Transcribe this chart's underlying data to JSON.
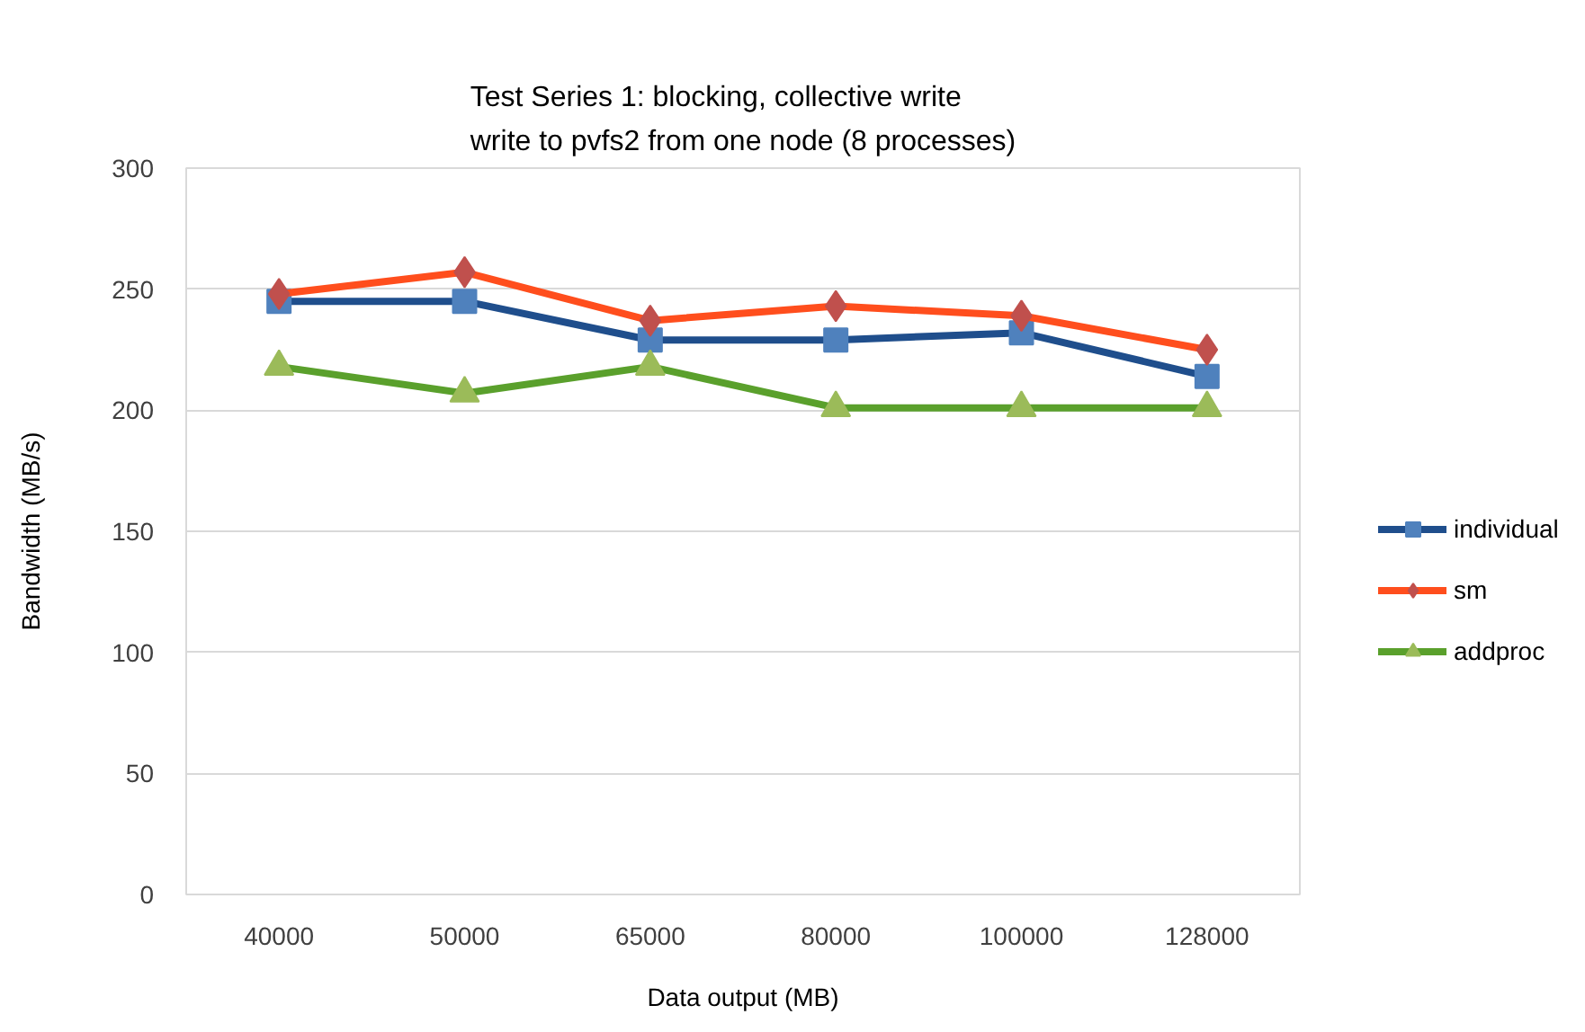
{
  "chart_data": {
    "type": "line",
    "title": "Test Series 1: blocking, collective write\nwrite to pvfs2 from one node (8 processes)",
    "xlabel": "Data output (MB)",
    "ylabel": "Bandwidth (MB/s)",
    "categories": [
      "40000",
      "50000",
      "65000",
      "80000",
      "100000",
      "128000"
    ],
    "series": [
      {
        "name": "individual",
        "color": "#1f4e8c",
        "colors": [
          "#4f81bd",
          "#4f81bd",
          "#4f81bd",
          "#4f81bd",
          "#4f81bd",
          "#4f81bd"
        ],
        "marker": "square",
        "values": [
          245,
          245,
          229,
          229,
          232,
          214
        ]
      },
      {
        "name": "sm",
        "color": "#ff4e1d",
        "colors": [
          "#c0504d",
          "#c0504d",
          "#c0504d",
          "#c0504d",
          "#c0504d",
          "#c0504d"
        ],
        "marker": "diamond",
        "values": [
          248,
          257,
          237,
          243,
          239,
          225
        ]
      },
      {
        "name": "addproc",
        "color": "#5aa02c",
        "colors": [
          "#9bbb59",
          "#9bbb59",
          "#9bbb59",
          "#9bbb59",
          "#9bbb59",
          "#9bbb59"
        ],
        "marker": "triangle",
        "values": [
          218,
          207,
          218,
          201,
          201,
          201
        ]
      }
    ],
    "ylim": [
      0,
      300
    ],
    "yticks": [
      0,
      50,
      100,
      150,
      200,
      250,
      300
    ],
    "grid": "y",
    "legend": "right",
    "line_style": "solid"
  }
}
